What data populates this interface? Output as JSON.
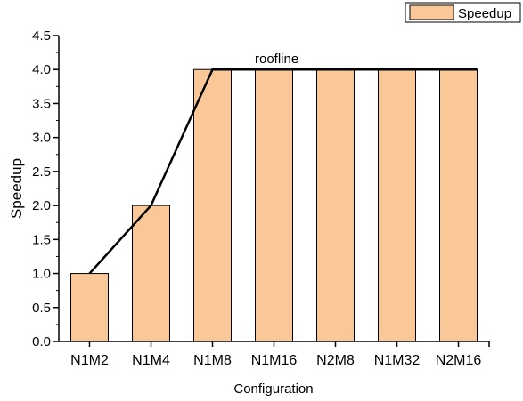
{
  "chart_data": {
    "type": "bar",
    "categories": [
      "N1M2",
      "N1M4",
      "N1M8",
      "N1M16",
      "N2M8",
      "N1M32",
      "N2M16"
    ],
    "series": [
      {
        "name": "Speedup",
        "values": [
          1.0,
          2.0,
          4.0,
          4.0,
          4.0,
          4.0,
          4.0
        ]
      }
    ],
    "roofline": {
      "label": "roofline",
      "values": [
        1.0,
        2.0,
        4.0,
        4.0,
        4.0,
        4.0,
        4.0
      ]
    },
    "xlabel": "Configuration",
    "ylabel": "Speedup",
    "ylim": [
      0,
      4.5
    ],
    "y_ticks": [
      "0.0",
      "0.5",
      "1.0",
      "1.5",
      "2.0",
      "2.5",
      "3.0",
      "3.5",
      "4.0",
      "4.5"
    ],
    "legend_position": "top-right",
    "grid": false,
    "colors": {
      "bar_fill": "#fac898",
      "bar_stroke": "#000000",
      "line": "#000000"
    }
  }
}
